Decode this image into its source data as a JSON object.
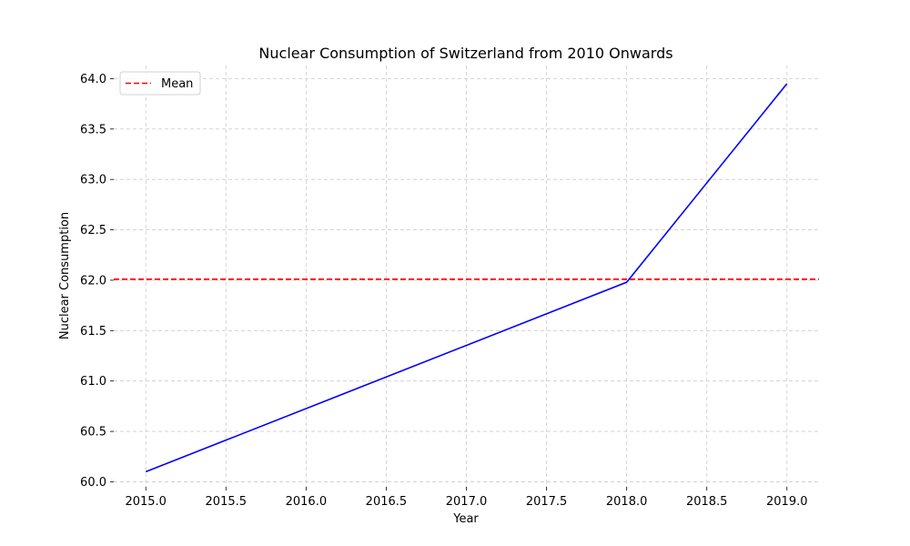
{
  "chart_data": {
    "type": "line",
    "title": "Nuclear Consumption of Switzerland from 2010 Onwards",
    "xlabel": "Year",
    "ylabel": "Nuclear Consumption",
    "xlim": [
      2014.8,
      2019.2
    ],
    "ylim": [
      59.95,
      64.13
    ],
    "x_ticks": [
      2015.0,
      2015.5,
      2016.0,
      2016.5,
      2017.0,
      2017.5,
      2018.0,
      2018.5,
      2019.0
    ],
    "x_tick_labels": [
      "2015.0",
      "2015.5",
      "2016.0",
      "2016.5",
      "2017.0",
      "2017.5",
      "2018.0",
      "2018.5",
      "2019.0"
    ],
    "y_ticks": [
      60.0,
      60.5,
      61.0,
      61.5,
      62.0,
      62.5,
      63.0,
      63.5,
      64.0
    ],
    "y_tick_labels": [
      "60.0",
      "60.5",
      "61.0",
      "61.5",
      "62.0",
      "62.5",
      "63.0",
      "63.5",
      "64.0"
    ],
    "grid": true,
    "legend_position": "top-left",
    "series": [
      {
        "x": [
          2015,
          2018,
          2019
        ],
        "values": [
          60.1,
          61.98,
          63.95
        ],
        "color": "#0000ff"
      }
    ],
    "reference_lines": [
      {
        "name": "Mean",
        "orientation": "horizontal",
        "value": 62.01,
        "color": "#ff0000",
        "style": "dashed"
      }
    ]
  }
}
